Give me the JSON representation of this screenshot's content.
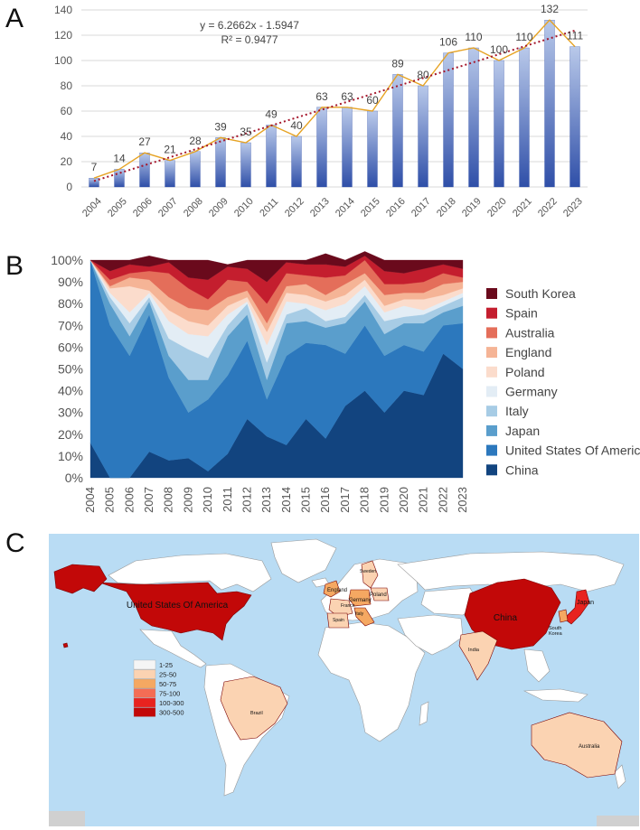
{
  "panels": {
    "a": "A",
    "b": "B",
    "c": "C"
  },
  "chart_data": [
    {
      "type": "bar",
      "panel": "A",
      "categories": [
        "2004",
        "2005",
        "2006",
        "2007",
        "2008",
        "2009",
        "2010",
        "2011",
        "2012",
        "2013",
        "2014",
        "2015",
        "2016",
        "2017",
        "2018",
        "2019",
        "2020",
        "2021",
        "2022",
        "2023"
      ],
      "values": [
        7,
        14,
        27,
        21,
        28,
        39,
        35,
        49,
        40,
        63,
        63,
        60,
        89,
        80,
        106,
        110,
        100,
        110,
        132,
        111
      ],
      "overlay_line": true,
      "trendline": {
        "slope": 6.2662,
        "intercept": -1.5947
      },
      "equation_label": "y = 6.2662x - 1.5947",
      "r2_label": "R² = 0.9477",
      "yticks": [
        0,
        20,
        40,
        60,
        80,
        100,
        120,
        140
      ],
      "ylim": [
        0,
        140
      ],
      "colors": {
        "bar_top": "#b9c9ea",
        "bar_bottom": "#2f4fa8",
        "line": "#e6a324",
        "trend": "#a5162b"
      }
    },
    {
      "type": "area",
      "panel": "B",
      "stacked": "percent",
      "categories": [
        "2004",
        "2005",
        "2006",
        "2007",
        "2008",
        "2009",
        "2010",
        "2011",
        "2012",
        "2013",
        "2014",
        "2015",
        "2016",
        "2017",
        "2018",
        "2019",
        "2020",
        "2021",
        "2022",
        "2023"
      ],
      "yticks": [
        "0%",
        "10%",
        "20%",
        "30%",
        "40%",
        "50%",
        "60%",
        "70%",
        "80%",
        "90%",
        "100%"
      ],
      "series": [
        {
          "name": "China",
          "color": "#12447f",
          "values": [
            16,
            0,
            0,
            12,
            8,
            9,
            3,
            11,
            27,
            19,
            15,
            27,
            18,
            33,
            40,
            30,
            40,
            38,
            57,
            50
          ]
        },
        {
          "name": "United States Of America",
          "color": "#2c78bd",
          "values": [
            84,
            70,
            56,
            63,
            38,
            21,
            33,
            36,
            36,
            17,
            41,
            35,
            43,
            24,
            30,
            26,
            21,
            20,
            13,
            21
          ]
        },
        {
          "name": "Japan",
          "color": "#5a9ecc",
          "values": [
            0,
            10,
            9,
            6,
            10,
            15,
            9,
            18,
            12,
            9,
            15,
            10,
            8,
            14,
            11,
            10,
            10,
            13,
            6,
            8
          ]
        },
        {
          "name": "Italy",
          "color": "#a7cce5",
          "values": [
            0,
            3,
            6,
            2,
            8,
            14,
            10,
            5,
            5,
            8,
            4,
            6,
            3,
            3,
            3,
            6,
            3,
            4,
            3,
            4
          ]
        },
        {
          "name": "Germany",
          "color": "#e3edf5",
          "values": [
            0,
            2,
            5,
            2,
            8,
            7,
            10,
            5,
            1,
            8,
            6,
            2,
            5,
            6,
            4,
            4,
            5,
            2,
            2,
            2
          ]
        },
        {
          "name": "Poland",
          "color": "#fbdccc",
          "values": [
            0,
            2,
            12,
            1,
            5,
            6,
            5,
            4,
            2,
            6,
            4,
            4,
            4,
            4,
            3,
            3,
            3,
            5,
            3,
            2
          ]
        },
        {
          "name": "England",
          "color": "#f5b496",
          "values": [
            0,
            1,
            4,
            5,
            6,
            6,
            7,
            4,
            3,
            4,
            3,
            5,
            3,
            5,
            3,
            5,
            3,
            3,
            5,
            3
          ]
        },
        {
          "name": "Australia",
          "color": "#e46e5a",
          "values": [
            0,
            3,
            2,
            4,
            11,
            9,
            5,
            8,
            4,
            9,
            6,
            4,
            8,
            4,
            6,
            5,
            4,
            5,
            5,
            2
          ]
        },
        {
          "name": "Spain",
          "color": "#c41e2e",
          "values": [
            0,
            4,
            4,
            2,
            5,
            5,
            9,
            6,
            6,
            10,
            5,
            5,
            6,
            4,
            2,
            6,
            5,
            6,
            4,
            4
          ]
        },
        {
          "name": "South Korea",
          "color": "#6a0a1c",
          "values": [
            0,
            5,
            2,
            5,
            1,
            8,
            9,
            1,
            4,
            10,
            1,
            2,
            5,
            3,
            2,
            5,
            6,
            4,
            2,
            4
          ]
        }
      ]
    }
  ],
  "map": {
    "panel": "C",
    "ocean_color": "#b9dcf4",
    "land_color": "#ffffff",
    "labels": {
      "usa": "United States Of America",
      "china": "China",
      "japan": "Japan",
      "south_korea_1": "South",
      "south_korea_2": "Korea",
      "india": "India",
      "australia": "Australia",
      "brazil": "Brazil",
      "england": "England",
      "germany": "Germany",
      "poland": "Poland",
      "france": "France",
      "italy": "Italy",
      "spain": "Spain",
      "sweden": "Sweden"
    },
    "legend": [
      {
        "label": "1-25",
        "color": "#f5f5f5"
      },
      {
        "label": "25-50",
        "color": "#fbd3b2"
      },
      {
        "label": "50-75",
        "color": "#f5a862"
      },
      {
        "label": "75-100",
        "color": "#f46d55"
      },
      {
        "label": "100-300",
        "color": "#e8231f"
      },
      {
        "label": "300-500",
        "color": "#c20808"
      }
    ]
  }
}
